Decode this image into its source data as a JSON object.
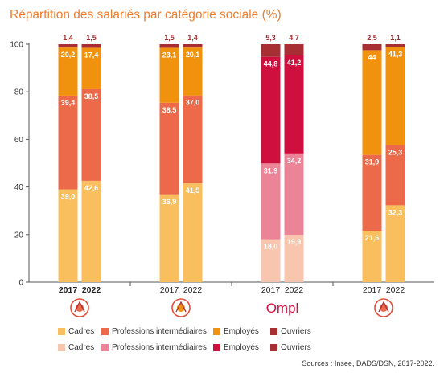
{
  "title": "Répartition des salariés par catégorie sociale (%)",
  "source": "Sources : Insee, DADS/DSN, 2017-2022.",
  "chart_data": {
    "type": "bar",
    "stacked": true,
    "ylim": [
      0,
      100
    ],
    "yticks": [
      0,
      20,
      40,
      60,
      80,
      100
    ],
    "groups": [
      {
        "icon": "accent-logo-icon",
        "bars": [
          {
            "year": "2017",
            "values": [
              39.0,
              39.4,
              20.2,
              1.4
            ],
            "labels": [
              "39,0",
              "39,4",
              "20,2",
              "1,4"
            ],
            "bold": true
          },
          {
            "year": "2022",
            "values": [
              42.6,
              38.5,
              17.4,
              1.5
            ],
            "labels": [
              "42,6",
              "38,5",
              "17,4",
              "1,5"
            ],
            "bold": true
          }
        ]
      },
      {
        "icon": "circle-logo-icon",
        "bars": [
          {
            "year": "2017",
            "values": [
              36.9,
              38.5,
              23.1,
              1.5
            ],
            "labels": [
              "36,9",
              "38,5",
              "23,1",
              "1,5"
            ],
            "bold": false
          },
          {
            "year": "2022",
            "values": [
              41.5,
              37.0,
              20.1,
              1.4
            ],
            "labels": [
              "41,5",
              "37,0",
              "20,1",
              "1,4"
            ],
            "bold": false
          }
        ]
      },
      {
        "logo_text": "Ompl",
        "bars": [
          {
            "year": "2017",
            "values": [
              18.0,
              31.9,
              44.8,
              5.3
            ],
            "labels": [
              "18,0",
              "31,9",
              "44,8",
              "5,3"
            ],
            "bold": false
          },
          {
            "year": "2022",
            "values": [
              19.9,
              34.2,
              41.2,
              4.7
            ],
            "labels": [
              "19,9",
              "34,2",
              "41,2",
              "4,7"
            ],
            "bold": false
          }
        ]
      },
      {
        "icon": "badge-logo-icon",
        "bars": [
          {
            "year": "2017",
            "values": [
              21.6,
              31.9,
              44.0,
              2.5
            ],
            "labels": [
              "21,6",
              "31,9",
              "44",
              "2,5"
            ],
            "bold": false
          },
          {
            "year": "2022",
            "values": [
              32.3,
              25.3,
              41.3,
              1.1
            ],
            "labels": [
              "32,3",
              "25,3",
              "41,3",
              "1,1"
            ],
            "bold": false
          }
        ]
      }
    ],
    "legend_rows": [
      {
        "items": [
          {
            "label": "Cadres",
            "color": "#f9bf5e"
          },
          {
            "label": "Professions intermédiaires",
            "color": "#ec6a4a"
          },
          {
            "label": "Employés",
            "color": "#f1920f"
          },
          {
            "label": "Ouvriers",
            "color": "#a72e33"
          }
        ]
      },
      {
        "items": [
          {
            "label": "Cadres",
            "color": "#f8c6ae"
          },
          {
            "label": "Professions intermédiaires",
            "color": "#ec8498"
          },
          {
            "label": "Employés",
            "color": "#cf0f3d"
          },
          {
            "label": "Ouvriers",
            "color": "#a72e33"
          }
        ]
      }
    ],
    "palettes": {
      "default": [
        "#f9bf5e",
        "#ec6a4a",
        "#f1920f",
        "#a72e33"
      ],
      "ompl": [
        "#f8c6ae",
        "#ec8498",
        "#cf0f3d",
        "#a72e33"
      ]
    }
  }
}
